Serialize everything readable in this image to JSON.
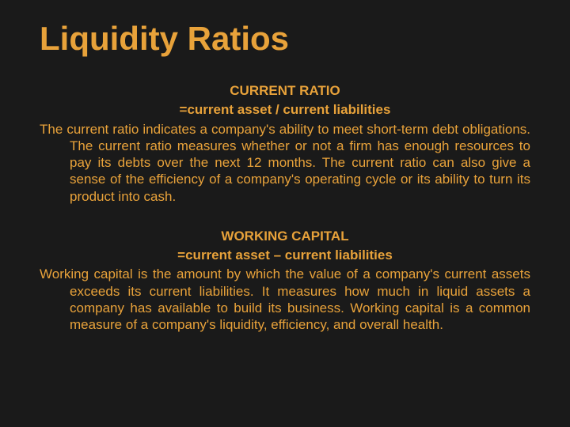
{
  "slide": {
    "title": "Liquidity Ratios",
    "sections": [
      {
        "heading": "CURRENT RATIO",
        "formula": "=current asset / current liabilities",
        "body": "The current ratio indicates a company's ability to meet short-term debt obligations. The current ratio measures whether or not a firm has enough resources to pay its debts over the next 12 months. The current ratio can also give a sense of the efficiency of a company's operating cycle or its ability to turn its product into cash."
      },
      {
        "heading": "WORKING CAPITAL",
        "formula": "=current asset – current liabilities",
        "body": "Working capital is the amount by which the value of a company's current assets exceeds its current liabilities. It measures how much in liquid assets a company has available to build its business. Working capital is a common measure of a company's liquidity, efficiency, and overall health."
      }
    ]
  },
  "colors": {
    "background": "#1a1a1a",
    "text": "#e8a23a",
    "title": "#e8a23a"
  },
  "typography": {
    "title_fontsize": 42,
    "heading_fontsize": 17,
    "body_fontsize": 17,
    "font_family": "Arial"
  }
}
